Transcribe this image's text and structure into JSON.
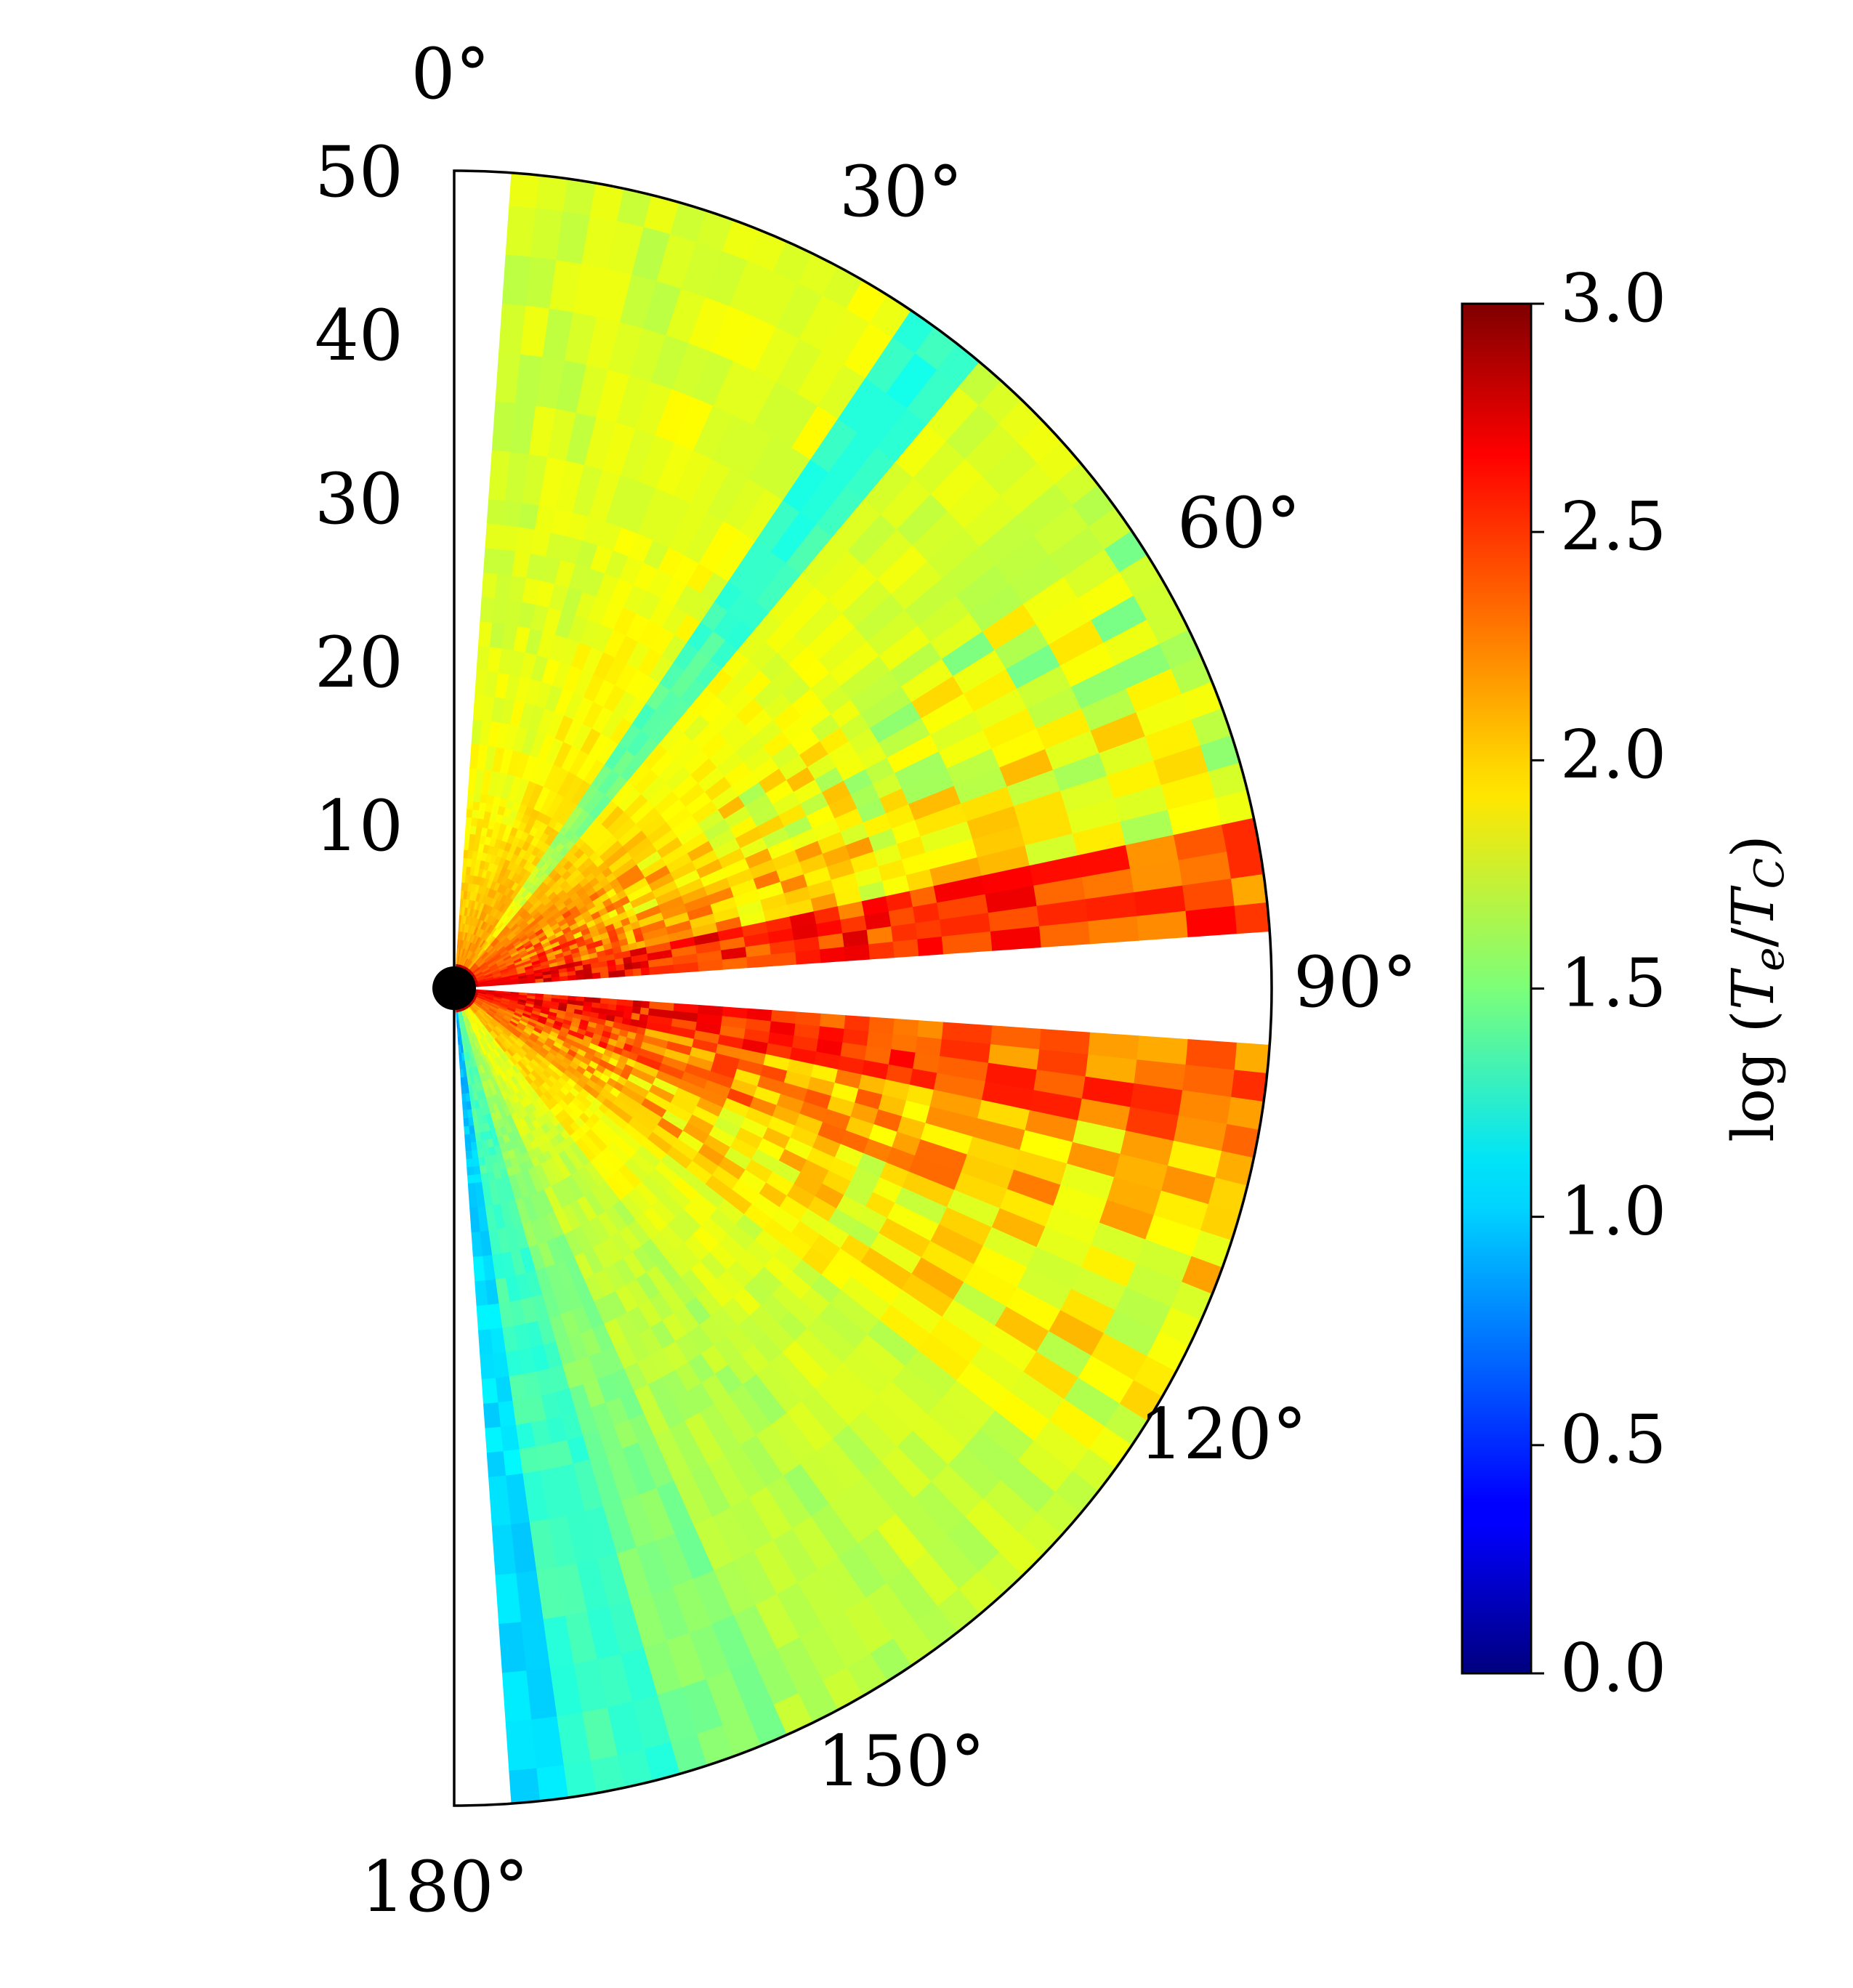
{
  "chart_data": {
    "type": "heatmap",
    "projection": "polar-half",
    "title": "",
    "r_range": [
      0,
      50
    ],
    "r_ticks": [
      "10",
      "20",
      "30",
      "40",
      "50"
    ],
    "theta_range_deg": [
      0,
      180
    ],
    "theta_ticks": [
      "0°",
      "30°",
      "60°",
      "90°",
      "120°",
      "150°",
      "180°"
    ],
    "colorbar": {
      "label": "log (T_e/T_C)",
      "label_main": "log",
      "label_num": "T",
      "label_num_sub": "e",
      "label_sep": "/",
      "label_den": "T",
      "label_den_sub": "C",
      "range": [
        0,
        3
      ],
      "ticks": [
        "0.0",
        "0.5",
        "1.0",
        "1.5",
        "2.0",
        "2.5",
        "3.0"
      ],
      "colormap": "jet"
    },
    "theta_bins_deg": [
      4,
      8,
      12,
      16,
      20,
      24,
      28,
      32,
      36,
      40,
      44,
      48,
      52,
      56,
      60,
      64,
      68,
      72,
      76,
      80,
      84,
      88,
      92,
      96,
      100,
      104,
      108,
      112,
      116,
      120,
      124,
      128,
      132,
      136,
      140,
      144,
      148,
      152,
      156,
      160,
      164,
      168,
      172,
      176,
      180
    ],
    "radial_profiles": [
      {
        "theta": [
          4,
          20
        ],
        "inner": 2.3,
        "outer": 1.75,
        "scale": 8
      },
      {
        "theta": [
          20,
          34
        ],
        "inner": 2.3,
        "outer": 1.8,
        "scale": 10
      },
      {
        "theta": [
          34,
          40
        ],
        "inner": 2.3,
        "outer": 1.25,
        "scale": 10
      },
      {
        "theta": [
          40,
          50
        ],
        "inner": 2.4,
        "outer": 1.75,
        "scale": 12
      },
      {
        "theta": [
          50,
          68
        ],
        "inner": 2.5,
        "outer": 1.65,
        "scale": 16
      },
      {
        "theta": [
          68,
          78
        ],
        "inner": 2.6,
        "outer": 1.7,
        "scale": 20
      },
      {
        "theta": [
          78,
          86
        ],
        "inner": 2.7,
        "outer": 2.3,
        "scale": 30
      },
      {
        "theta": [
          94,
          102
        ],
        "inner": 2.7,
        "outer": 2.2,
        "scale": 30
      },
      {
        "theta": [
          102,
          112
        ],
        "inner": 2.6,
        "outer": 1.9,
        "scale": 22
      },
      {
        "theta": [
          112,
          128
        ],
        "inner": 2.4,
        "outer": 1.8,
        "scale": 16
      },
      {
        "theta": [
          128,
          142
        ],
        "inner": 2.2,
        "outer": 1.7,
        "scale": 12
      },
      {
        "theta": [
          142,
          156
        ],
        "inner": 1.9,
        "outer": 1.65,
        "scale": 10
      },
      {
        "theta": [
          156,
          164
        ],
        "inner": 1.7,
        "outer": 1.5,
        "scale": 10
      },
      {
        "theta": [
          164,
          172
        ],
        "inner": 1.4,
        "outer": 1.3,
        "scale": 10
      },
      {
        "theta": [
          172,
          176
        ],
        "inner": 0.85,
        "outer": 1.05,
        "scale": 10
      }
    ],
    "empty_regions": [
      {
        "theta": [
          0,
          4
        ],
        "r": [
          0,
          50
        ]
      },
      {
        "theta": [
          176,
          180
        ],
        "r": [
          0,
          50
        ]
      },
      {
        "theta": [
          86.5,
          93.5
        ],
        "r": [
          7,
          50
        ]
      }
    ],
    "central_object": {
      "r": 1.2,
      "color": "#000000"
    }
  }
}
